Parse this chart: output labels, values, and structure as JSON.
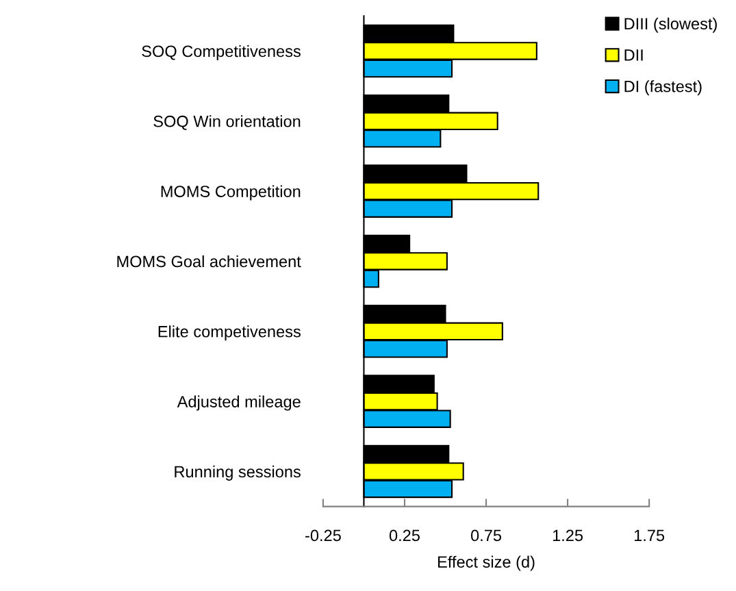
{
  "chart_data": {
    "type": "bar",
    "orientation": "horizontal",
    "xlabel": "Effect size (d)",
    "categories": [
      "SOQ Competitiveness",
      "SOQ Win orientation",
      "MOMS Competition",
      "MOMS Goal achievement",
      "Elite competiveness",
      "Adjusted mileage",
      "Running sessions"
    ],
    "series": [
      {
        "name": "DIII (slowest)",
        "color": "#000000",
        "values": [
          0.55,
          0.52,
          0.63,
          0.28,
          0.5,
          0.43,
          0.52
        ]
      },
      {
        "name": "DII",
        "color": "#ffff00",
        "values": [
          1.06,
          0.82,
          1.07,
          0.51,
          0.85,
          0.45,
          0.61
        ]
      },
      {
        "name": "DI (fastest)",
        "color": "#00b0f0",
        "values": [
          0.54,
          0.47,
          0.54,
          0.09,
          0.51,
          0.53,
          0.54
        ]
      }
    ],
    "xlim": [
      -0.25,
      1.75
    ],
    "xticks": [
      -0.25,
      0.25,
      0.75,
      1.25,
      1.75
    ],
    "grid": false,
    "legend": "top right"
  }
}
